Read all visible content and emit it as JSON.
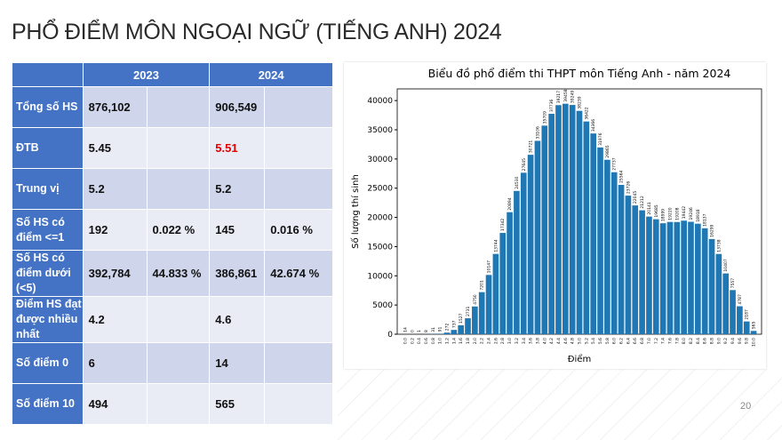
{
  "title": "PHỔ ĐIỂM MÔN NGOẠI NGỮ (TIẾNG ANH) 2024",
  "table": {
    "headers": [
      "",
      "2023",
      "2024"
    ],
    "rows": [
      {
        "label": "Tổng số HS",
        "c1": "876,102",
        "c2": "",
        "c3": "906,549",
        "c4": ""
      },
      {
        "label": "ĐTB",
        "c1": "5.45",
        "c2": "",
        "c3": "5.51",
        "c4": ""
      },
      {
        "label": "Trung vị",
        "c1": "5.2",
        "c2": "",
        "c3": "5.2",
        "c4": ""
      },
      {
        "label": "Số HS có điểm <=1",
        "c1": "192",
        "c2": "0.022 %",
        "c3": "145",
        "c4": "0.016 %"
      },
      {
        "label": "Số HS có điểm dưới (<5)",
        "c1": "392,784",
        "c2": "44.833 %",
        "c3": "386,861",
        "c4": "42.674 %"
      },
      {
        "label": "Điểm HS đạt được nhiều nhất",
        "c1": "4.2",
        "c2": "",
        "c3": "4.6",
        "c4": ""
      },
      {
        "label": "Số điểm 0",
        "c1": "6",
        "c2": "",
        "c3": "14",
        "c4": ""
      },
      {
        "label": "Số điểm 10",
        "c1": "494",
        "c2": "",
        "c3": "565",
        "c4": ""
      }
    ]
  },
  "highlight_color": "#e00000",
  "page_number": "20",
  "chart_data": {
    "type": "bar",
    "title": "Biểu đồ phổ điểm thi THPT môn Tiếng Anh - năm 2024",
    "xlabel": "Điểm",
    "ylabel": "Số lượng thí sinh",
    "ylim": [
      0,
      42000
    ],
    "yticks": [
      0,
      5000,
      10000,
      15000,
      20000,
      25000,
      30000,
      35000,
      40000
    ],
    "color": "#1f77b4",
    "categories": [
      "0.0",
      "0.2",
      "0.4",
      "0.6",
      "0.8",
      "1.0",
      "1.2",
      "1.4",
      "1.6",
      "1.8",
      "2.0",
      "2.2",
      "2.4",
      "2.6",
      "2.8",
      "3.0",
      "3.2",
      "3.4",
      "3.6",
      "3.8",
      "4.0",
      "4.2",
      "4.4",
      "4.6",
      "4.8",
      "5.0",
      "5.2",
      "5.4",
      "5.6",
      "5.8",
      "6.0",
      "6.2",
      "6.4",
      "6.6",
      "6.8",
      "7.0",
      "7.2",
      "7.4",
      "7.6",
      "7.8",
      "8.0",
      "8.2",
      "8.4",
      "8.6",
      "8.8",
      "9.0",
      "9.2",
      "9.4",
      "9.6",
      "9.8",
      "10.0"
    ],
    "values": [
      14,
      0,
      1,
      8,
      31,
      91,
      272,
      737,
      1527,
      2731,
      4750,
      7201,
      10147,
      13744,
      17342,
      20894,
      24530,
      27645,
      30721,
      33106,
      35709,
      37736,
      39217,
      39458,
      39249,
      38239,
      36422,
      34366,
      31976,
      29865,
      27737,
      25564,
      23726,
      22045,
      21212,
      20141,
      19685,
      18999,
      19220,
      19208,
      19442,
      19246,
      18918,
      18137,
      16299,
      13738,
      10407,
      7557,
      4787,
      2187,
      565
    ]
  }
}
